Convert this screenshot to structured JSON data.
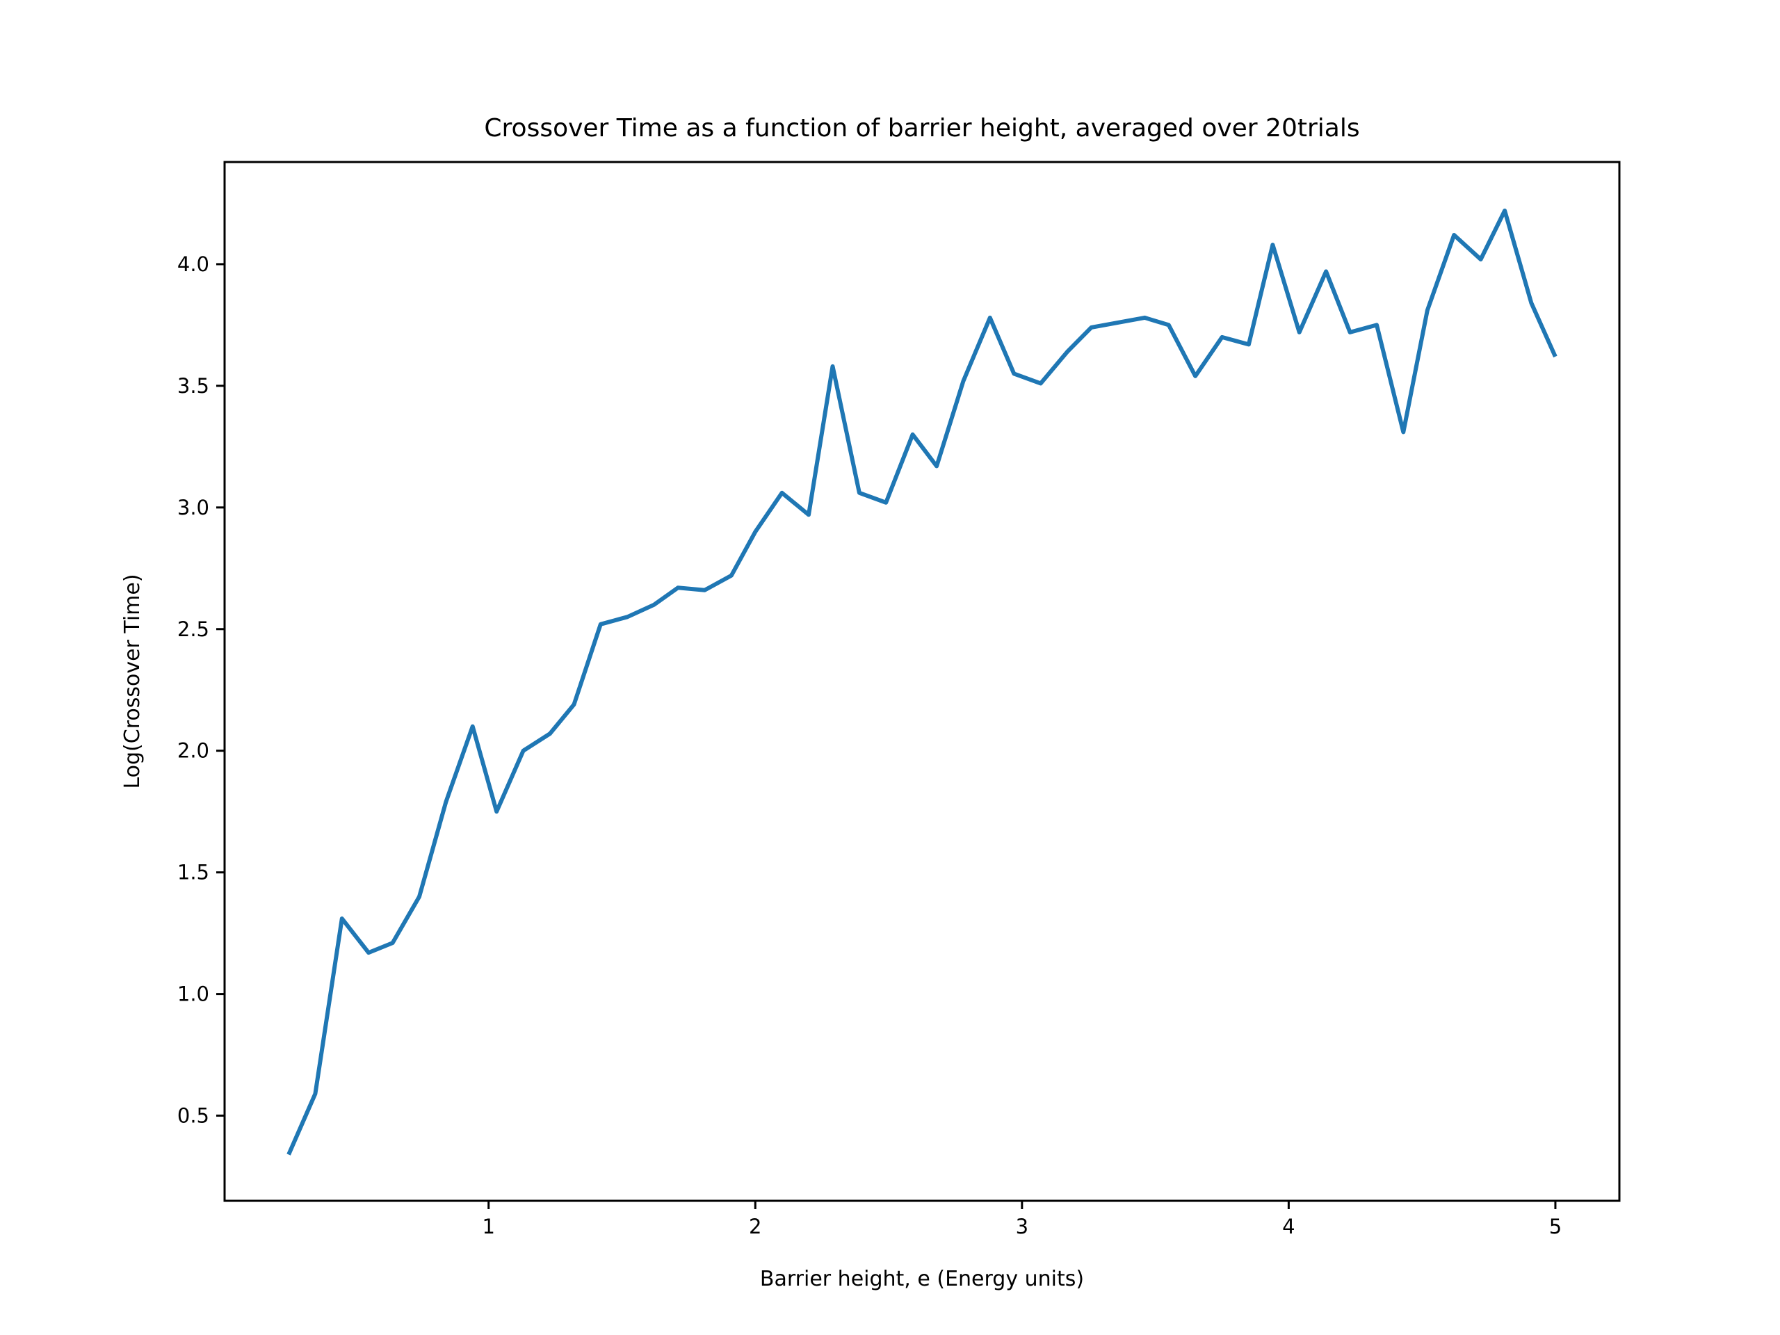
{
  "colors": {
    "series": "#1f77b4",
    "background": "#ffffff",
    "axes": "#000000"
  },
  "chart_data": {
    "type": "line",
    "title": "Crossover Time as a function of barrier height, averaged over 20trials",
    "xlabel": "Barrier height, e (Energy units)",
    "ylabel": "Log(Crossover Time)",
    "xlim": [
      0.01,
      5.24
    ],
    "ylim": [
      0.15,
      4.42
    ],
    "xticks": [
      1,
      2,
      3,
      4,
      5
    ],
    "xtick_labels": [
      "1",
      "2",
      "3",
      "4",
      "5"
    ],
    "yticks": [
      0.5,
      1.0,
      1.5,
      2.0,
      2.5,
      3.0,
      3.5,
      4.0
    ],
    "ytick_labels": [
      "0.5",
      "1.0",
      "1.5",
      "2.0",
      "2.5",
      "3.0",
      "3.5",
      "4.0"
    ],
    "grid": false,
    "legend": "none",
    "x": [
      0.25,
      0.35,
      0.45,
      0.55,
      0.64,
      0.74,
      0.84,
      0.94,
      1.03,
      1.13,
      1.23,
      1.32,
      1.42,
      1.52,
      1.62,
      1.71,
      1.81,
      1.91,
      2.0,
      2.1,
      2.2,
      2.29,
      2.39,
      2.49,
      2.59,
      2.68,
      2.78,
      2.88,
      2.97,
      3.07,
      3.17,
      3.26,
      3.36,
      3.46,
      3.55,
      3.65,
      3.75,
      3.85,
      3.94,
      4.04,
      4.14,
      4.23,
      4.33,
      4.43,
      4.52,
      4.62,
      4.72,
      4.81,
      4.91,
      5.0
    ],
    "series": [
      {
        "values": [
          0.34,
          0.59,
          1.31,
          1.17,
          1.21,
          1.4,
          1.79,
          2.1,
          1.75,
          2.0,
          2.07,
          2.19,
          2.52,
          2.55,
          2.6,
          2.67,
          2.66,
          2.72,
          2.9,
          3.06,
          2.97,
          3.58,
          3.06,
          3.02,
          3.3,
          3.17,
          3.52,
          3.78,
          3.55,
          3.51,
          3.64,
          3.74,
          3.76,
          3.78,
          3.75,
          3.54,
          3.7,
          3.67,
          4.08,
          3.72,
          3.97,
          3.72,
          3.75,
          3.31,
          3.81,
          4.12,
          4.02,
          4.22,
          3.84,
          3.62
        ]
      }
    ]
  }
}
